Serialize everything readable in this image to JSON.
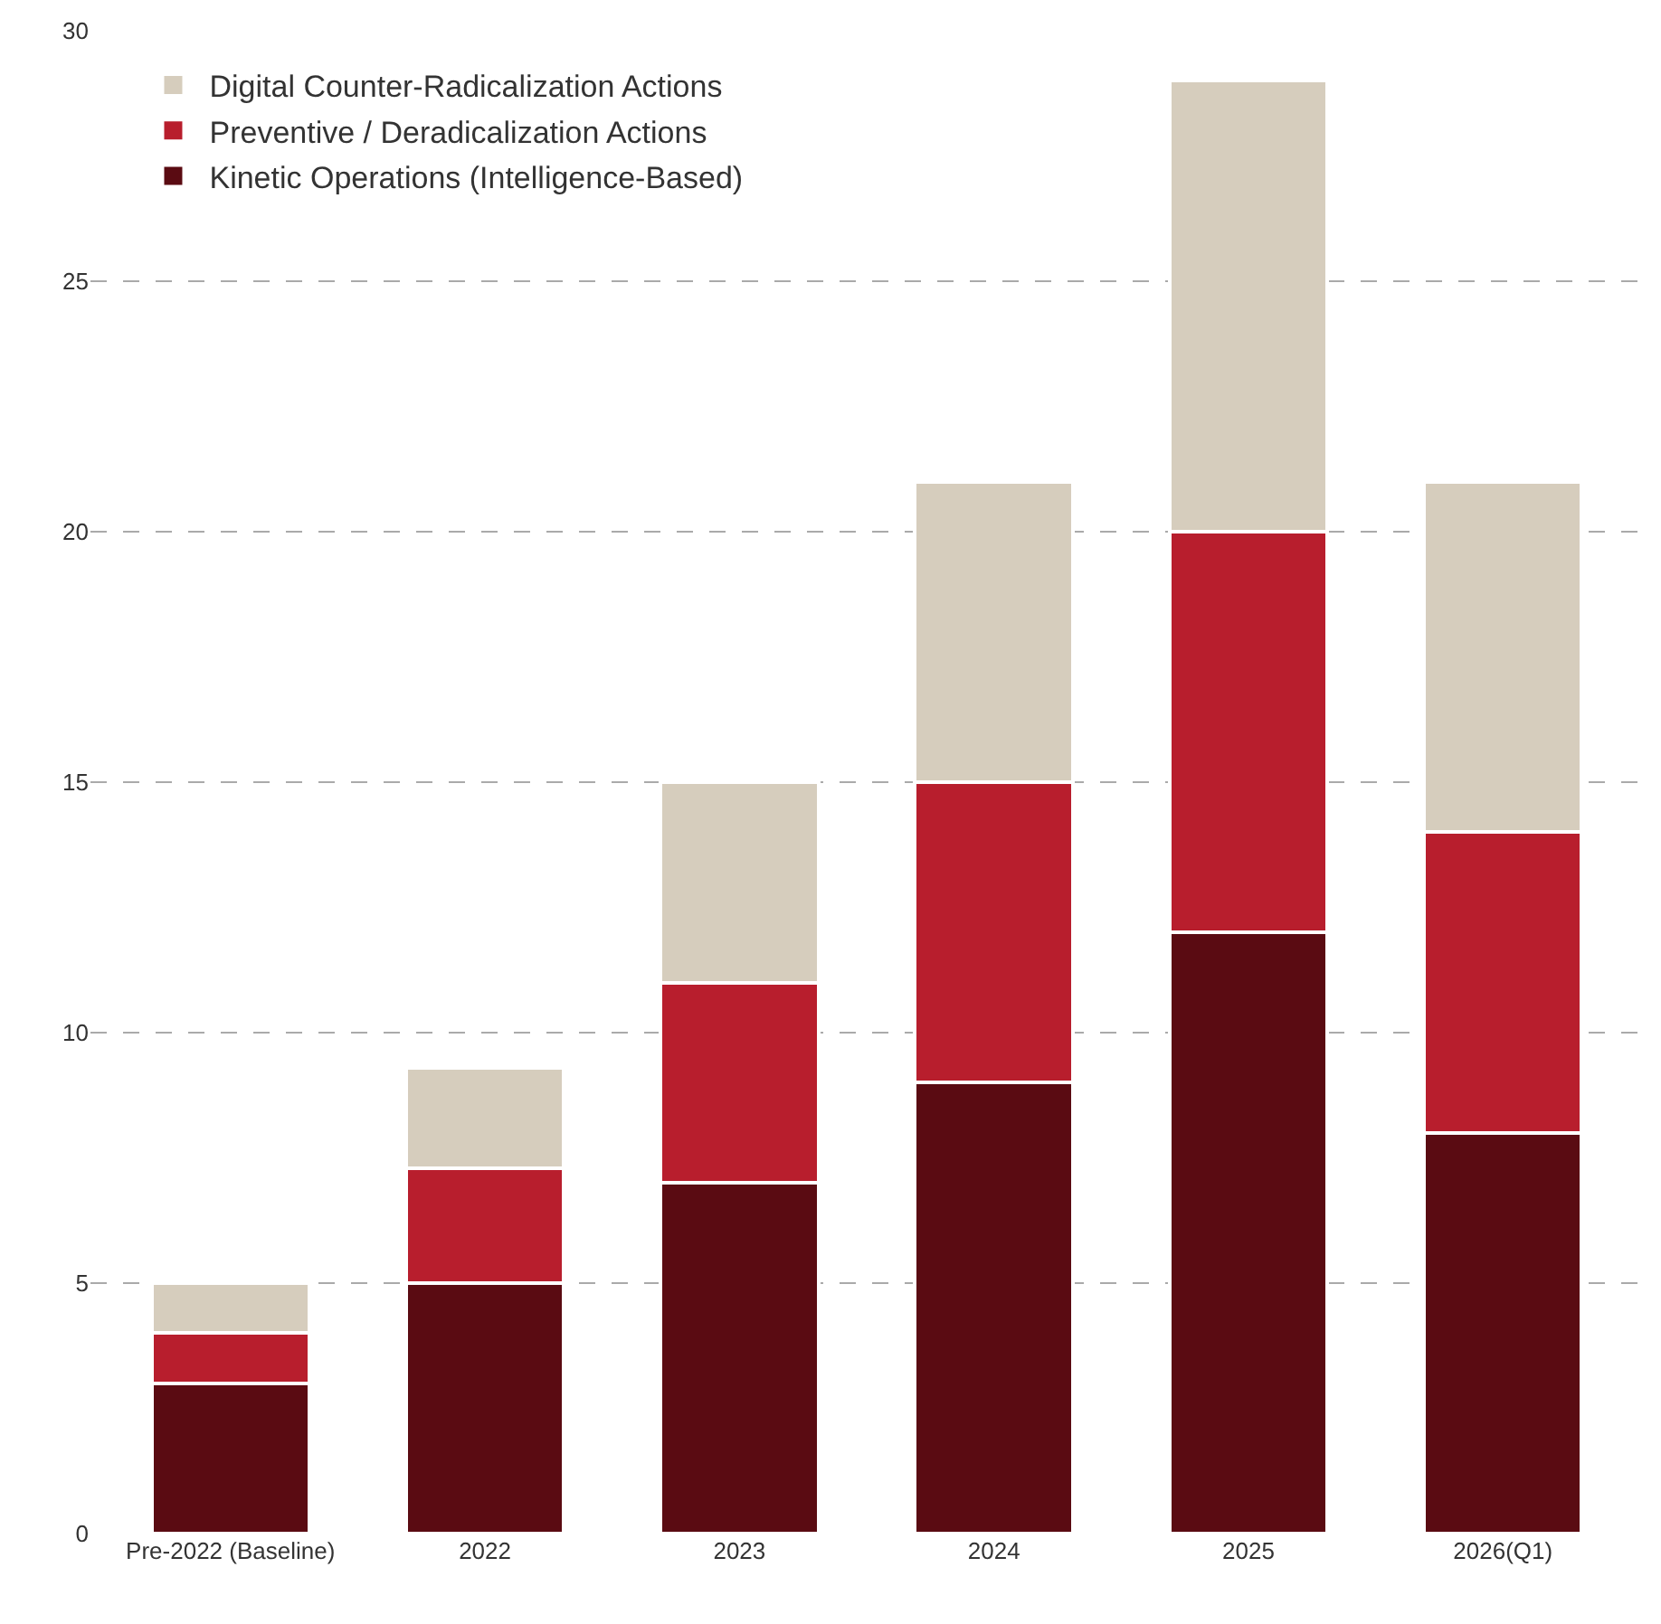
{
  "chart_data": {
    "type": "bar",
    "stacked": true,
    "categories": [
      "Pre-2022 (Baseline)",
      "2022",
      "2023",
      "2024",
      "2025",
      "2026(Q1)"
    ],
    "series": [
      {
        "name": "Kinetic Operations (Intelligence-Based)",
        "color": "#5a0b12",
        "values": [
          3,
          5,
          7,
          9,
          12,
          8
        ]
      },
      {
        "name": "Preventive / Deradicalization Actions",
        "color": "#b81e2d",
        "values": [
          1,
          2.3,
          4,
          6,
          8,
          6
        ]
      },
      {
        "name": "Digital Counter-Radicalization Actions",
        "color": "#d6cdbd",
        "values": [
          1,
          2,
          4,
          6,
          9,
          7
        ]
      }
    ],
    "ylim": [
      0,
      30
    ],
    "yticks": [
      0,
      5,
      10,
      15,
      20,
      25,
      30
    ],
    "grid": "y",
    "legend": "top left"
  }
}
